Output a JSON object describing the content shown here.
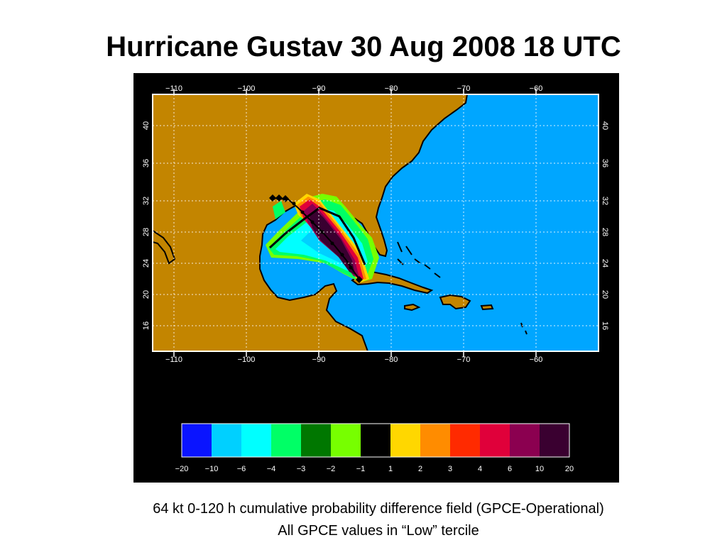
{
  "title": "Hurricane Gustav  30 Aug 2008 18 UTC",
  "caption": {
    "line1": "64 kt 0-120 h cumulative probability difference field (GPCE-Operational)",
    "line2": "All GPCE values in “Low” tercile"
  },
  "map": {
    "longitude_ticks": [
      "−110",
      "−100",
      "−90",
      "−80",
      "−70",
      "−60"
    ],
    "latitude_ticks": [
      "40",
      "36",
      "32",
      "28",
      "24",
      "20",
      "16"
    ],
    "colors": {
      "frame": "#000000",
      "ocean": "#00a6ff",
      "land": "#c38500",
      "grid": "#ffffff",
      "coast": "#000000",
      "track": "#000000"
    }
  },
  "colorbar": {
    "labels": [
      "−20",
      "−10",
      "−6",
      "−4",
      "−3",
      "−2",
      "−1",
      "1",
      "2",
      "3",
      "4",
      "6",
      "10",
      "20"
    ],
    "colors": [
      "#0a14ff",
      "#00d0ff",
      "#00ffff",
      "#00ff66",
      "#007700",
      "#77ff00",
      "#000000",
      "#ffd700",
      "#ff8c00",
      "#ff2a00",
      "#e0003a",
      "#8b0050",
      "#3a0030"
    ]
  }
}
